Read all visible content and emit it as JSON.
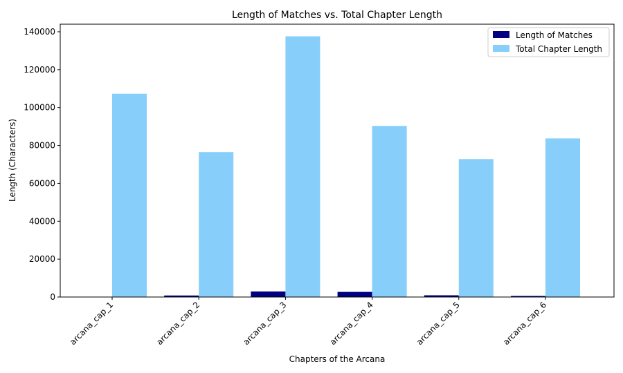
{
  "chart_data": {
    "type": "bar",
    "title": "Length of Matches vs. Total Chapter Length",
    "xlabel": "Chapters of the Arcana",
    "ylabel": "Length (Characters)",
    "categories": [
      "arcana_cap_1",
      "arcana_cap_2",
      "arcana_cap_3",
      "arcana_cap_4",
      "arcana_cap_5",
      "arcana_cap_6"
    ],
    "series": [
      {
        "name": "Length of Matches",
        "color": "#000080",
        "values": [
          150,
          800,
          2900,
          2700,
          900,
          600
        ]
      },
      {
        "name": "Total Chapter Length",
        "color": "#87CEFA",
        "values": [
          107300,
          76500,
          137600,
          90300,
          72800,
          83700
        ]
      }
    ],
    "ylim": [
      0,
      144000
    ],
    "yticks": [
      0,
      20000,
      40000,
      60000,
      80000,
      100000,
      120000,
      140000
    ],
    "ytick_labels": [
      "0",
      "20000",
      "40000",
      "60000",
      "80000",
      "100000",
      "120000",
      "140000"
    ],
    "grid": false,
    "legend_position": "top-right"
  }
}
